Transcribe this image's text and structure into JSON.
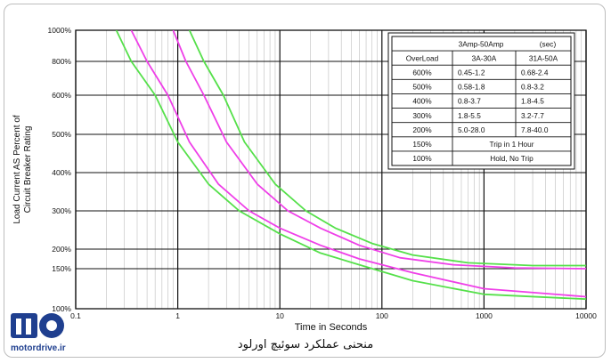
{
  "caption": "منحنی عملکرد سوئیچ اورلود",
  "logo": {
    "text": "motordrive.ir"
  },
  "chart_data": {
    "type": "line",
    "xlabel": "Time in Seconds",
    "ylabel": "Load Current AS Percent of Circuit Breaker Rating",
    "xscale": "log",
    "xlim": [
      0.1,
      10000
    ],
    "ylim": [
      100,
      1000
    ],
    "x_ticks": [
      "0.1",
      "1",
      "10",
      "100",
      "1000",
      "10000"
    ],
    "y_ticks": [
      {
        "v": 100,
        "label": "100%"
      },
      {
        "v": 150,
        "label": "150%"
      },
      {
        "v": 200,
        "label": "200%"
      },
      {
        "v": 300,
        "label": "300%"
      },
      {
        "v": 400,
        "label": "400%"
      },
      {
        "v": 500,
        "label": "500%"
      },
      {
        "v": 600,
        "label": "600%"
      },
      {
        "v": 800,
        "label": "800%"
      },
      {
        "v": 1000,
        "label": "1000%"
      }
    ],
    "grid": true,
    "colors": {
      "green": "#55e04a",
      "magenta": "#ef3fe8",
      "grid_major": "#111111",
      "grid_minor": "#bdbdbd"
    },
    "series": [
      {
        "color": "green",
        "x": [
          0.25,
          0.35,
          0.6,
          1.0,
          2.0,
          4.0,
          10,
          25,
          60,
          200,
          1000,
          10000
        ],
        "y": [
          1000,
          800,
          600,
          480,
          370,
          300,
          240,
          190,
          160,
          135,
          118,
          112
        ]
      },
      {
        "color": "magenta",
        "x": [
          0.35,
          0.5,
          0.8,
          1.3,
          2.5,
          5,
          10,
          25,
          60,
          200,
          1000,
          10000
        ],
        "y": [
          1000,
          800,
          600,
          480,
          370,
          300,
          255,
          210,
          175,
          145,
          125,
          115
        ]
      },
      {
        "color": "magenta",
        "x": [
          0.9,
          1.2,
          1.8,
          3,
          6,
          12,
          25,
          60,
          150,
          500,
          2000,
          10000
        ],
        "y": [
          1000,
          800,
          600,
          480,
          370,
          300,
          255,
          210,
          178,
          160,
          152,
          150
        ]
      },
      {
        "color": "green",
        "x": [
          1.3,
          1.8,
          2.8,
          4.5,
          9,
          18,
          35,
          80,
          200,
          700,
          3000,
          10000
        ],
        "y": [
          1000,
          800,
          600,
          480,
          370,
          300,
          255,
          215,
          185,
          165,
          158,
          158
        ]
      }
    ],
    "table": {
      "title": "3Amp-50Amp",
      "unit": "(sec)",
      "header": [
        "OverLoad",
        "3A-30A",
        "31A-50A"
      ],
      "rows": [
        [
          "600%",
          "0.45-1.2",
          "0.68-2.4"
        ],
        [
          "500%",
          "0.58-1.8",
          "0.8-3.2"
        ],
        [
          "400%",
          "0.8-3.7",
          "1.8-4.5"
        ],
        [
          "300%",
          "1.8-5.5",
          "3.2-7.7"
        ],
        [
          "200%",
          "5.0-28.0",
          "7.8-40.0"
        ],
        [
          "150%",
          "Trip in 1 Hour"
        ],
        [
          "100%",
          "Hold, No Trip"
        ]
      ]
    }
  }
}
